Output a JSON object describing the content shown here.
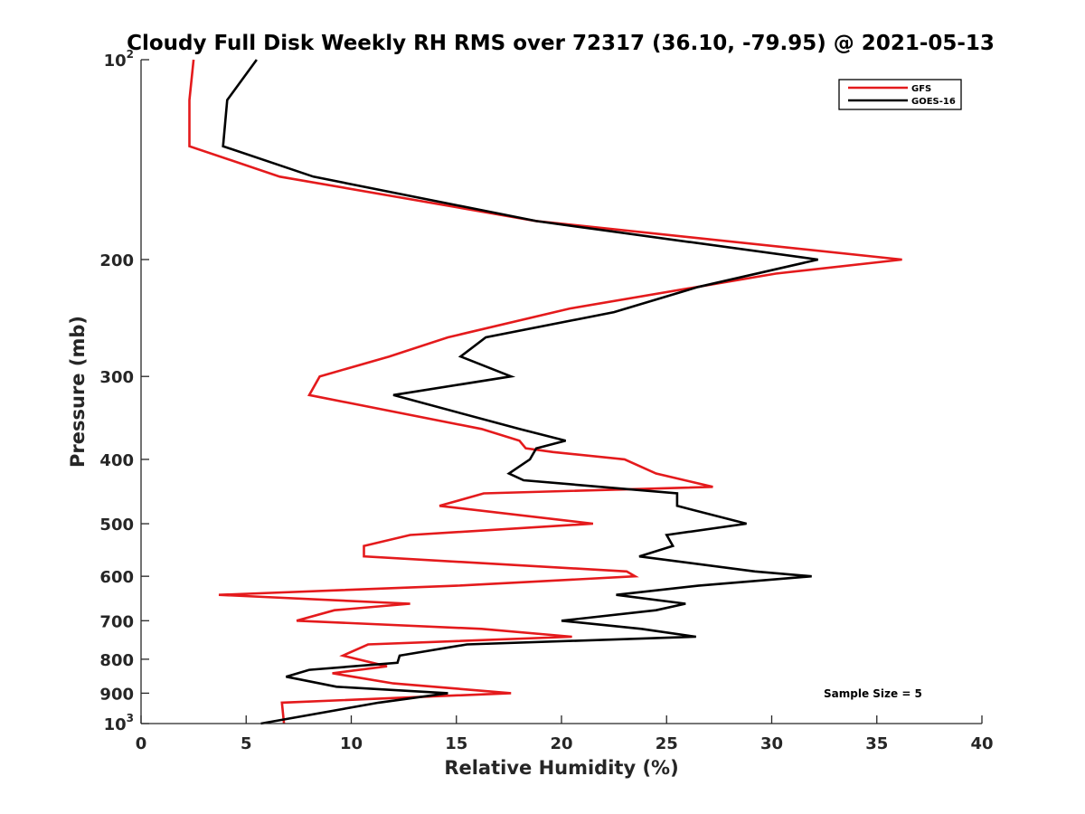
{
  "chart_data": {
    "type": "line",
    "title": "Cloudy Full Disk Weekly RH RMS over 72317 (36.10, -79.95) @ 2021-05-13",
    "xlabel": "Relative Humidity (%)",
    "ylabel": "Pressure (mb)",
    "xlim": [
      0,
      40
    ],
    "ylim": [
      100,
      1000
    ],
    "y_scale": "log",
    "y_reversed": true,
    "x_ticks": [
      0,
      5,
      10,
      15,
      20,
      25,
      30,
      35,
      40
    ],
    "x_tick_labels": [
      "0",
      "5",
      "10",
      "15",
      "20",
      "25",
      "30",
      "35",
      "40"
    ],
    "y_ticks": [
      100,
      200,
      300,
      400,
      500,
      600,
      700,
      800,
      900,
      1000
    ],
    "y_tick_labels": [
      {
        "base": "10",
        "exp": "2"
      },
      {
        "base": "200",
        "exp": ""
      },
      {
        "base": "300",
        "exp": ""
      },
      {
        "base": "400",
        "exp": ""
      },
      {
        "base": "500",
        "exp": ""
      },
      {
        "base": "600",
        "exp": ""
      },
      {
        "base": "700",
        "exp": ""
      },
      {
        "base": "800",
        "exp": ""
      },
      {
        "base": "900",
        "exp": ""
      },
      {
        "base": "10",
        "exp": "3"
      }
    ],
    "grid": false,
    "legend_position": "top-right",
    "annotation": "Sample Size = 5",
    "series": [
      {
        "name": "GFS",
        "color": "#e41a1c",
        "points": [
          [
            2.5,
            100
          ],
          [
            2.3,
            115
          ],
          [
            2.3,
            135
          ],
          [
            6.6,
            150
          ],
          [
            18.8,
            175
          ],
          [
            36.2,
            200
          ],
          [
            30.2,
            210
          ],
          [
            20.4,
            237
          ],
          [
            14.6,
            262
          ],
          [
            11.8,
            280
          ],
          [
            8.5,
            300
          ],
          [
            8.0,
            320
          ],
          [
            16.2,
            360
          ],
          [
            18.0,
            375
          ],
          [
            18.3,
            385
          ],
          [
            19.6,
            390
          ],
          [
            23.0,
            400
          ],
          [
            24.5,
            420
          ],
          [
            27.2,
            440
          ],
          [
            16.3,
            450
          ],
          [
            14.2,
            470
          ],
          [
            21.5,
            500
          ],
          [
            12.8,
            520
          ],
          [
            10.6,
            540
          ],
          [
            10.6,
            560
          ],
          [
            23.1,
            590
          ],
          [
            23.5,
            600
          ],
          [
            15.0,
            620
          ],
          [
            3.7,
            640
          ],
          [
            12.8,
            660
          ],
          [
            9.2,
            675
          ],
          [
            7.4,
            700
          ],
          [
            16.2,
            720
          ],
          [
            20.5,
            740
          ],
          [
            10.8,
            760
          ],
          [
            9.6,
            790
          ],
          [
            11.7,
            820
          ],
          [
            9.1,
            840
          ],
          [
            12.0,
            870
          ],
          [
            17.6,
            900
          ],
          [
            6.7,
            930
          ],
          [
            6.8,
            1000
          ]
        ]
      },
      {
        "name": "GOES-16",
        "color": "#000000",
        "points": [
          [
            5.5,
            100
          ],
          [
            4.1,
            115
          ],
          [
            3.9,
            135
          ],
          [
            8.2,
            150
          ],
          [
            18.8,
            175
          ],
          [
            32.2,
            200
          ],
          [
            26.5,
            220
          ],
          [
            22.5,
            240
          ],
          [
            16.4,
            262
          ],
          [
            15.2,
            280
          ],
          [
            17.6,
            300
          ],
          [
            12.0,
            320
          ],
          [
            18.0,
            360
          ],
          [
            20.2,
            375
          ],
          [
            18.8,
            385
          ],
          [
            18.5,
            400
          ],
          [
            17.5,
            420
          ],
          [
            18.2,
            430
          ],
          [
            25.5,
            450
          ],
          [
            25.5,
            470
          ],
          [
            28.8,
            500
          ],
          [
            25.0,
            520
          ],
          [
            25.3,
            540
          ],
          [
            23.7,
            560
          ],
          [
            29.2,
            590
          ],
          [
            31.9,
            600
          ],
          [
            26.5,
            620
          ],
          [
            22.6,
            640
          ],
          [
            25.9,
            660
          ],
          [
            24.5,
            675
          ],
          [
            20.0,
            700
          ],
          [
            23.8,
            720
          ],
          [
            26.4,
            740
          ],
          [
            15.5,
            760
          ],
          [
            12.3,
            790
          ],
          [
            12.2,
            810
          ],
          [
            8.0,
            830
          ],
          [
            6.9,
            850
          ],
          [
            9.3,
            880
          ],
          [
            14.6,
            900
          ],
          [
            11.3,
            930
          ],
          [
            5.7,
            1000
          ]
        ]
      }
    ]
  }
}
